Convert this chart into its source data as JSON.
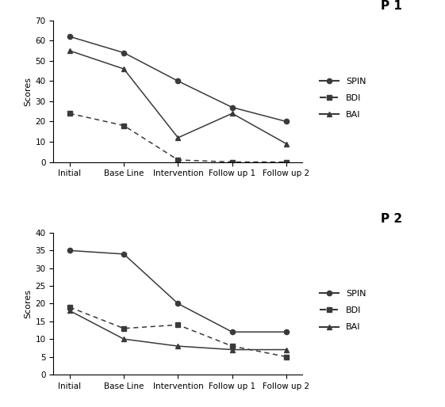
{
  "x_labels": [
    "Initial",
    "Base Line",
    "Intervention",
    "Follow up 1",
    "Follow up 2"
  ],
  "p1": {
    "title": "P1",
    "SPIN": [
      62,
      54,
      40,
      27,
      20
    ],
    "BDI": [
      24,
      18,
      1,
      0,
      0
    ],
    "BAI": [
      55,
      46,
      12,
      24,
      9
    ],
    "ylim": [
      0,
      70
    ],
    "yticks": [
      0,
      10,
      20,
      30,
      40,
      50,
      60,
      70
    ]
  },
  "p2": {
    "title": "P2",
    "SPIN": [
      35,
      34,
      20,
      12,
      12
    ],
    "BDI": [
      19,
      13,
      14,
      8,
      5
    ],
    "BAI": [
      18,
      10,
      8,
      7,
      7
    ],
    "ylim": [
      0,
      40
    ],
    "yticks": [
      0,
      5,
      10,
      15,
      20,
      25,
      30,
      35,
      40
    ]
  },
  "line_color": "#3a3a3a",
  "marker_SPIN": "o",
  "marker_BDI": "s",
  "marker_BAI": "^",
  "legend_labels": [
    "SPIN",
    "BDI",
    "BAI"
  ],
  "ylabel": "Scores",
  "title_fontsize": 11,
  "label_fontsize": 8,
  "tick_fontsize": 7.5,
  "legend_fontsize": 8,
  "fig_width": 5.61,
  "fig_height": 5.14,
  "dpi": 100
}
